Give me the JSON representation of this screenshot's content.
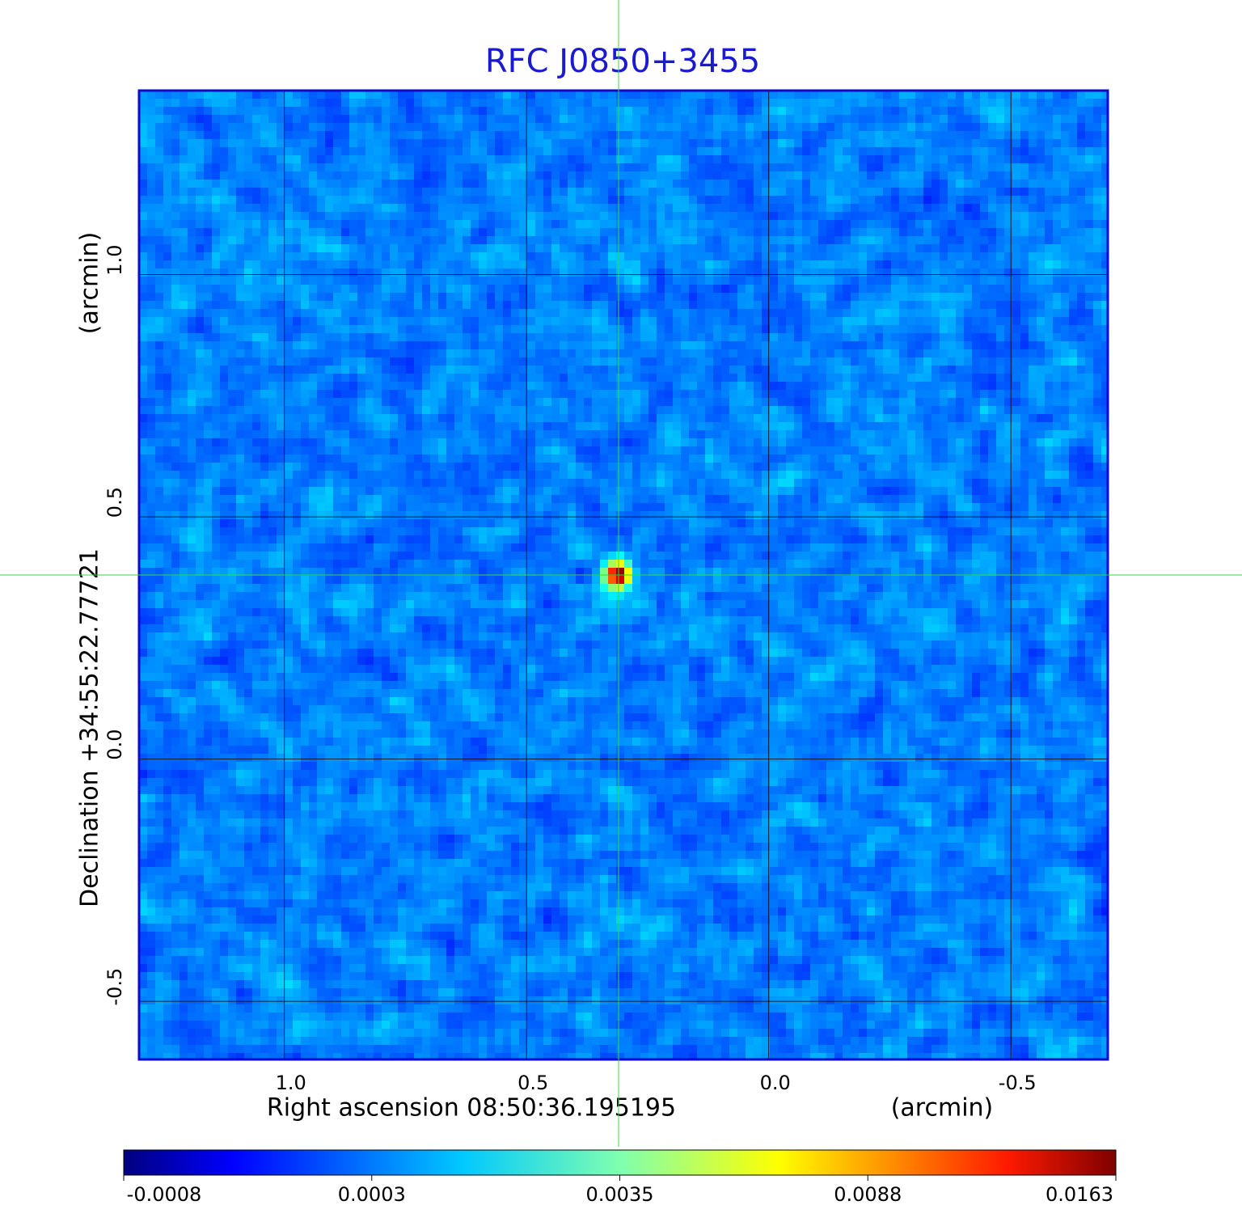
{
  "chart_data": {
    "type": "image",
    "title": "RFC J0850+3455",
    "xlabel": "Right ascension  08:50:36.195195",
    "xunit": "(arcmin)",
    "ylabel": "Declination  +34:55:22.77721",
    "yunit": "(arcmin)",
    "xlim": [
      1.3,
      -0.7
    ],
    "ylim": [
      -0.62,
      1.38
    ],
    "xticks": [
      {
        "value": 1,
        "label": "1.0"
      },
      {
        "value": 0.5,
        "label": "0.5"
      },
      {
        "value": 0,
        "label": "0.0"
      },
      {
        "value": -0.5,
        "label": "-0.5"
      }
    ],
    "yticks": [
      {
        "value": 1,
        "label": "1.0"
      },
      {
        "value": 0.5,
        "label": "0.5"
      },
      {
        "value": 0,
        "label": "0.0"
      },
      {
        "value": -0.5,
        "label": "-0.5"
      }
    ],
    "grid": true,
    "crosshair": {
      "x": 0.31,
      "y": 0.38,
      "color": "#33dd33"
    },
    "colormap": "jet",
    "colorbar": {
      "ticks": [
        -0.0008,
        0.0003,
        0.0035,
        0.0088,
        0.0163
      ]
    }
  }
}
